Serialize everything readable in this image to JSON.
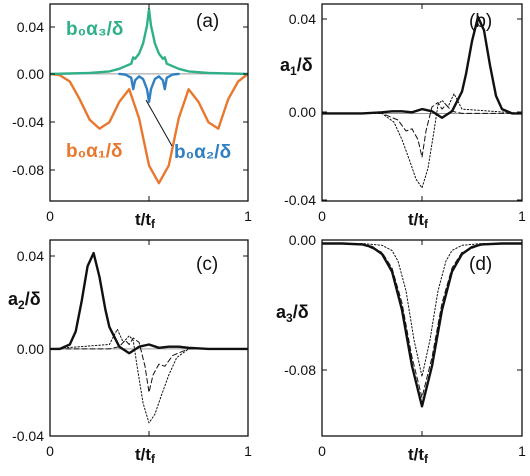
{
  "colors": {
    "orange": "#e8782f",
    "blue": "#2f7fc1",
    "green": "#2fb089",
    "black": "#111111",
    "zero_line": "#9a9a9a"
  },
  "chart_data": [
    {
      "panel": "a",
      "type": "line",
      "panel_label": "(a)",
      "xlabel": "t/tf",
      "ylabel": "",
      "xlim": [
        0,
        1
      ],
      "ylim": [
        -0.1,
        0.055
      ],
      "x_ticks": [
        "0",
        "1"
      ],
      "y_ticks": [
        "0.04",
        "0.00",
        "-0.04",
        "-0.08"
      ],
      "series": [
        {
          "name": "b0α1/δ",
          "color": "orange",
          "x": [
            0,
            0.05,
            0.1,
            0.15,
            0.2,
            0.25,
            0.3,
            0.35,
            0.4,
            0.45,
            0.5,
            0.55,
            0.6,
            0.65,
            0.7,
            0.75,
            0.8,
            0.85,
            0.9,
            0.95,
            1
          ],
          "y": [
            0,
            -0.001,
            -0.006,
            -0.02,
            -0.036,
            -0.043,
            -0.038,
            -0.022,
            -0.012,
            -0.035,
            -0.072,
            -0.086,
            -0.072,
            -0.035,
            -0.012,
            -0.022,
            -0.038,
            -0.043,
            -0.02,
            -0.006,
            0
          ]
        },
        {
          "name": "b0α2/δ",
          "color": "blue",
          "x": [
            0.35,
            0.38,
            0.41,
            0.42,
            0.43,
            0.45,
            0.47,
            0.49,
            0.5,
            0.51,
            0.53,
            0.55,
            0.57,
            0.58,
            0.59,
            0.62,
            0.65
          ],
          "y": [
            0,
            -0.0005,
            -0.003,
            -0.012,
            -0.005,
            -0.002,
            -0.004,
            -0.012,
            -0.022,
            -0.012,
            -0.004,
            -0.002,
            -0.005,
            -0.012,
            -0.003,
            -0.0005,
            0
          ]
        },
        {
          "name": "b0α3/δ",
          "color": "green",
          "x": [
            0,
            0.1,
            0.2,
            0.3,
            0.35,
            0.38,
            0.41,
            0.42,
            0.43,
            0.45,
            0.47,
            0.49,
            0.5,
            0.51,
            0.53,
            0.55,
            0.57,
            0.58,
            0.59,
            0.62,
            0.65,
            0.7,
            0.8,
            0.9,
            1
          ],
          "y": [
            0,
            0.0003,
            0.0008,
            0.002,
            0.004,
            0.006,
            0.008,
            0.013,
            0.012,
            0.016,
            0.024,
            0.038,
            0.051,
            0.038,
            0.024,
            0.016,
            0.012,
            0.013,
            0.008,
            0.006,
            0.004,
            0.002,
            0.0008,
            0.0003,
            0
          ]
        }
      ]
    },
    {
      "panel": "b",
      "type": "line",
      "panel_label": "(b)",
      "xlabel": "t/tf",
      "ylabel": "a1/δ",
      "xlim": [
        0,
        1
      ],
      "ylim": [
        -0.04,
        0.05
      ],
      "x_ticks": [
        "0",
        "1"
      ],
      "y_ticks": [
        "0.04",
        "0.00",
        "-0.04"
      ],
      "series": [
        {
          "style": "solid-thick",
          "x": [
            0,
            0.1,
            0.2,
            0.3,
            0.35,
            0.4,
            0.45,
            0.5,
            0.55,
            0.6,
            0.65,
            0.7,
            0.72,
            0.75,
            0.78,
            0.81,
            0.84,
            0.87,
            0.9,
            0.95,
            1
          ],
          "y": [
            0,
            0,
            0,
            0.0005,
            0.001,
            0.001,
            0.0005,
            0.002,
            0.001,
            -0.002,
            0.001,
            0.01,
            0.018,
            0.033,
            0.044,
            0.038,
            0.022,
            0.008,
            0.002,
            0,
            0
          ]
        },
        {
          "style": "dashed",
          "x": [
            0,
            0.3,
            0.38,
            0.42,
            0.45,
            0.48,
            0.5,
            0.52,
            0.55,
            0.58,
            0.6,
            0.62,
            0.65,
            0.7,
            1
          ],
          "y": [
            0,
            0,
            -0.003,
            -0.008,
            -0.007,
            -0.012,
            -0.02,
            -0.008,
            0.003,
            0.005,
            0.002,
            0.004,
            0.001,
            0,
            0
          ]
        },
        {
          "style": "dotted",
          "x": [
            0,
            0.3,
            0.36,
            0.4,
            0.44,
            0.47,
            0.5,
            0.53,
            0.56,
            0.58,
            0.6,
            0.63,
            0.66,
            0.7,
            1
          ],
          "y": [
            0,
            0,
            -0.004,
            -0.012,
            -0.022,
            -0.03,
            -0.034,
            -0.025,
            -0.008,
            0.004,
            0.006,
            0.003,
            0.009,
            0.002,
            0
          ]
        }
      ]
    },
    {
      "panel": "c",
      "type": "line",
      "panel_label": "(c)",
      "xlabel": "t/tf",
      "ylabel": "a2/δ",
      "xlim": [
        0,
        1
      ],
      "ylim": [
        -0.04,
        0.05
      ],
      "x_ticks": [
        "0",
        "1"
      ],
      "y_ticks": [
        "0.04",
        "0.00",
        "-0.04"
      ],
      "series": [
        {
          "style": "solid-thick",
          "x": [
            0,
            0.05,
            0.1,
            0.13,
            0.16,
            0.19,
            0.22,
            0.25,
            0.28,
            0.3,
            0.35,
            0.4,
            0.45,
            0.5,
            0.55,
            0.6,
            0.65,
            0.7,
            0.8,
            0.9,
            1
          ],
          "y": [
            0,
            0,
            0.002,
            0.008,
            0.022,
            0.038,
            0.044,
            0.033,
            0.018,
            0.01,
            0.001,
            -0.002,
            0.001,
            0.002,
            0.0005,
            0.001,
            0.001,
            0.0005,
            0,
            0,
            0
          ]
        },
        {
          "style": "dashed",
          "x": [
            0,
            0.3,
            0.35,
            0.38,
            0.4,
            0.42,
            0.45,
            0.48,
            0.5,
            0.52,
            0.55,
            0.58,
            0.62,
            0.7,
            1
          ],
          "y": [
            0,
            0,
            0.001,
            0.004,
            0.002,
            0.005,
            0.003,
            -0.008,
            -0.02,
            -0.012,
            -0.007,
            -0.008,
            -0.003,
            0,
            0
          ]
        },
        {
          "style": "dotted",
          "x": [
            0,
            0.3,
            0.34,
            0.37,
            0.4,
            0.42,
            0.44,
            0.47,
            0.5,
            0.53,
            0.56,
            0.6,
            0.64,
            0.7,
            1
          ],
          "y": [
            0,
            0.002,
            0.009,
            0.003,
            0.006,
            0.004,
            -0.008,
            -0.025,
            -0.034,
            -0.03,
            -0.022,
            -0.012,
            -0.004,
            0,
            0
          ]
        }
      ]
    },
    {
      "panel": "d",
      "type": "line",
      "panel_label": "(d)",
      "xlabel": "t/tf",
      "ylabel": "a3/δ",
      "xlim": [
        0,
        1
      ],
      "ylim": [
        -0.11,
        0.002
      ],
      "x_ticks": [
        "0",
        "1"
      ],
      "y_ticks": [
        "0.00",
        "-0.08"
      ],
      "series": [
        {
          "style": "solid-thick",
          "x": [
            0,
            0.1,
            0.2,
            0.25,
            0.3,
            0.35,
            0.4,
            0.45,
            0.5,
            0.55,
            0.6,
            0.65,
            0.7,
            0.75,
            0.8,
            0.9,
            1
          ],
          "y": [
            0,
            0,
            -0.0005,
            -0.002,
            -0.006,
            -0.016,
            -0.038,
            -0.07,
            -0.093,
            -0.07,
            -0.038,
            -0.016,
            -0.006,
            -0.002,
            -0.0005,
            0,
            0
          ]
        },
        {
          "style": "dashed",
          "x": [
            0,
            0.1,
            0.2,
            0.3,
            0.35,
            0.4,
            0.45,
            0.5,
            0.55,
            0.6,
            0.65,
            0.7,
            0.8,
            0.9,
            1
          ],
          "y": [
            0,
            0,
            -0.0005,
            -0.005,
            -0.014,
            -0.034,
            -0.065,
            -0.088,
            -0.065,
            -0.034,
            -0.014,
            -0.005,
            -0.0005,
            0,
            0
          ]
        },
        {
          "style": "dotted",
          "x": [
            0,
            0.2,
            0.3,
            0.35,
            0.38,
            0.42,
            0.46,
            0.5,
            0.54,
            0.58,
            0.62,
            0.65,
            0.7,
            0.8,
            1
          ],
          "y": [
            0,
            0,
            -0.001,
            -0.004,
            -0.01,
            -0.027,
            -0.055,
            -0.076,
            -0.055,
            -0.027,
            -0.01,
            -0.004,
            -0.001,
            0,
            0
          ]
        }
      ]
    }
  ],
  "annotations_a": [
    {
      "text": "b₀α₃/δ",
      "color": "green"
    },
    {
      "text": "b₀α₁/δ",
      "color": "orange"
    },
    {
      "text": "b₀α₂/δ",
      "color": "blue"
    }
  ]
}
